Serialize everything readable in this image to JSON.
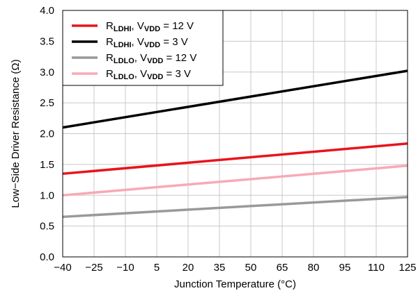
{
  "chart_data": {
    "type": "line",
    "title": "",
    "xlabel": "Junction Temperature (°C)",
    "ylabel": "Low−Side Driver Resistance (Ω)",
    "xlim": [
      -40,
      125
    ],
    "ylim": [
      0.0,
      4.0
    ],
    "x_ticks": [
      -40,
      -25,
      -10,
      5,
      20,
      35,
      50,
      65,
      80,
      95,
      110,
      125
    ],
    "x_tick_labels": [
      "−40",
      "−25",
      "−10",
      "5",
      "20",
      "35",
      "50",
      "65",
      "80",
      "95",
      "110",
      "125"
    ],
    "y_ticks": [
      0.0,
      0.5,
      1.0,
      1.5,
      2.0,
      2.5,
      3.0,
      3.5,
      4.0
    ],
    "y_tick_labels": [
      "0.0",
      "0.5",
      "1.0",
      "1.5",
      "2.0",
      "2.5",
      "3.0",
      "3.5",
      "4.0"
    ],
    "grid": true,
    "legend_position": "top-left",
    "x": [
      -40,
      125
    ],
    "series": [
      {
        "name": "R",
        "name_sub": "LDHI",
        "name_cond": ", V",
        "name_cond_sub": "VDD",
        "name_tail": " = 12 V",
        "color": "#e8141c",
        "values": [
          1.35,
          1.84
        ]
      },
      {
        "name": "R",
        "name_sub": "LDHI",
        "name_cond": ", V",
        "name_cond_sub": "VDD",
        "name_tail": " = 3 V",
        "color": "#000000",
        "values": [
          2.1,
          3.02
        ]
      },
      {
        "name": "R",
        "name_sub": "LDLO",
        "name_cond": ", V",
        "name_cond_sub": "VDD",
        "name_tail": " = 12 V",
        "color": "#999999",
        "values": [
          0.65,
          0.97
        ]
      },
      {
        "name": "R",
        "name_sub": "LDLO",
        "name_cond": ", V",
        "name_cond_sub": "VDD",
        "name_tail": " = 3 V",
        "color": "#f7aab6",
        "values": [
          1.0,
          1.48
        ]
      }
    ]
  }
}
